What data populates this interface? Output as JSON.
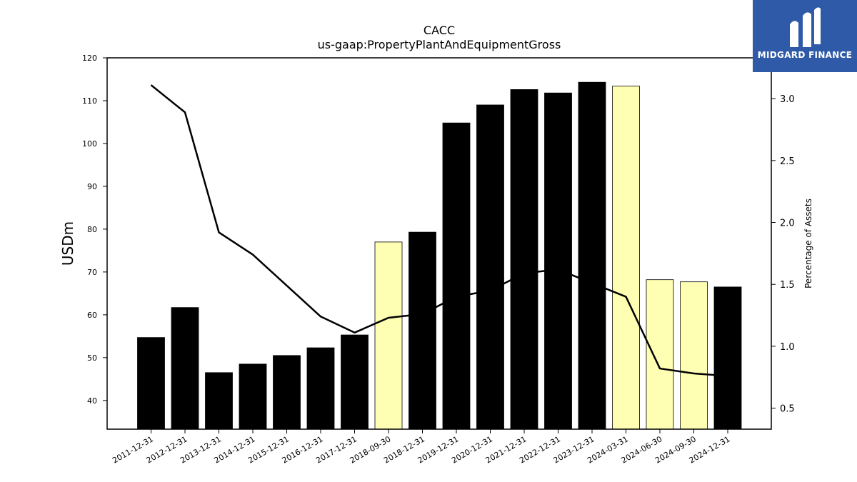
{
  "chart_data": {
    "type": "bar",
    "title": "CACC",
    "subtitle": "us-gaap:PropertyPlantAndEquipmentGross",
    "ylabel": "USDm",
    "y2label": "Percentage of Assets",
    "ylim": [
      33.3,
      120
    ],
    "y2lim": [
      0.33,
      3.33
    ],
    "yticks": [
      40,
      50,
      60,
      70,
      80,
      90,
      100,
      110,
      120
    ],
    "y2ticks": [
      0.5,
      1.0,
      1.5,
      2.0,
      2.5,
      3.0
    ],
    "categories": [
      "2011-12-31",
      "2012-12-31",
      "2013-12-31",
      "2014-12-31",
      "2015-12-31",
      "2016-12-31",
      "2017-12-31",
      "2018-09-30",
      "2018-12-31",
      "2019-12-31",
      "2020-12-31",
      "2021-12-31",
      "2022-12-31",
      "2023-12-31",
      "2024-03-31",
      "2024-06-30",
      "2024-09-30",
      "2024-12-31"
    ],
    "series": [
      {
        "type": "bar",
        "values": [
          54.7,
          61.7,
          46.5,
          48.5,
          50.5,
          52.3,
          55.3,
          77.0,
          79.3,
          104.8,
          109.0,
          112.6,
          111.8,
          114.3,
          113.4,
          68.2,
          67.7,
          66.5
        ],
        "colors": [
          "#000000",
          "#000000",
          "#000000",
          "#000000",
          "#000000",
          "#000000",
          "#000000",
          "#ffffb3",
          "#000000",
          "#000000",
          "#000000",
          "#000000",
          "#000000",
          "#000000",
          "#ffffb3",
          "#ffffb3",
          "#ffffb3",
          "#000000"
        ]
      },
      {
        "type": "line",
        "axis": "right",
        "color": "#000000",
        "values": [
          3.11,
          2.89,
          1.92,
          1.74,
          1.49,
          1.24,
          1.11,
          1.23,
          1.26,
          1.4,
          1.45,
          1.59,
          1.62,
          1.51,
          1.4,
          0.82,
          0.78,
          0.76
        ]
      }
    ],
    "grid": false
  },
  "logo": {
    "text": "MIDGARD FINANCE",
    "background": "#2f5aa8"
  }
}
